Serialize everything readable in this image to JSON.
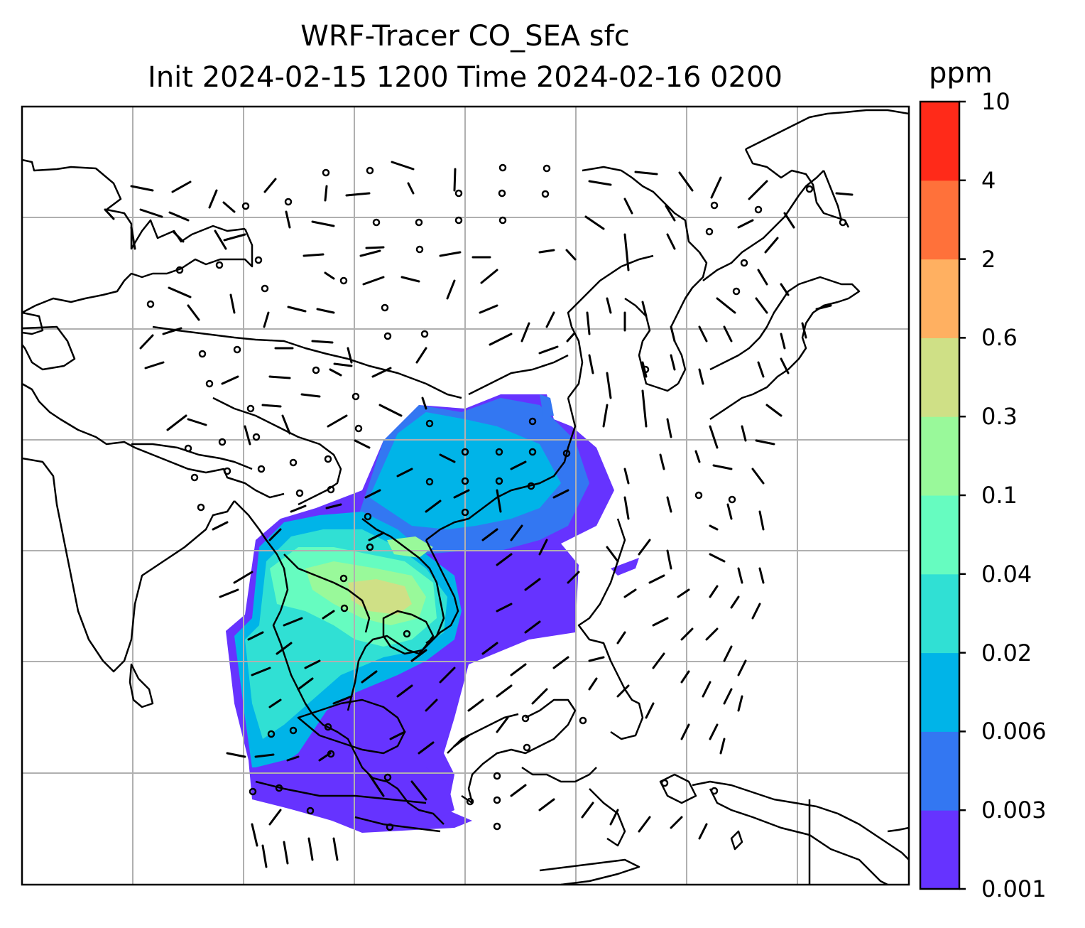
{
  "title": {
    "line1": "WRF-Tracer CO_SEA sfc",
    "line2": "Init 2024-02-15 1200 Time 2024-02-16 0200"
  },
  "colorbar": {
    "unit": "ppm",
    "tick_labels": [
      "0.001",
      "0.003",
      "0.006",
      "0.02",
      "0.04",
      "0.1",
      "0.3",
      "0.6",
      "2",
      "4",
      "10"
    ],
    "colors": [
      "#6633ff",
      "#3377f2",
      "#00b4e8",
      "#30e0d4",
      "#66fcc0",
      "#99f99a",
      "#cfe086",
      "#ffb061",
      "#ff713a",
      "#ff2a19"
    ]
  },
  "map": {
    "gridlines": true,
    "features": [
      "coastlines",
      "country borders",
      "CO tracer concentration fill",
      "surface wind barbs"
    ],
    "plume_region": "Southeast Asia and southern China"
  }
}
